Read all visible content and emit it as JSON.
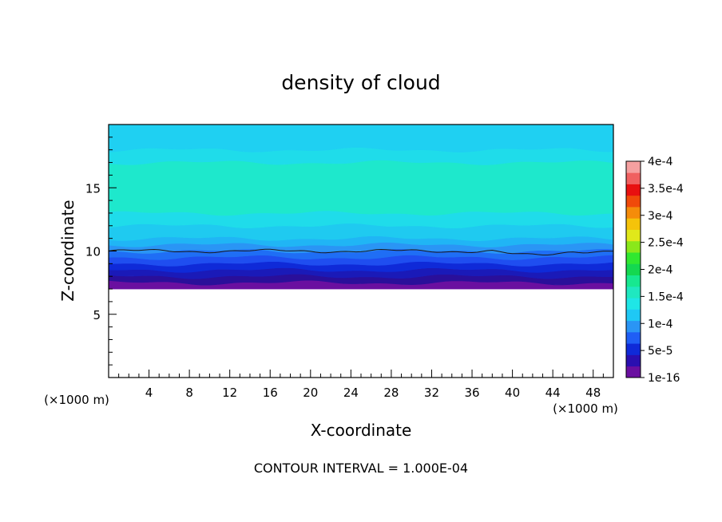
{
  "chart_data": {
    "type": "contour",
    "title": "density of cloud",
    "xlabel": "X-coordinate",
    "ylabel": "Z-coordinate",
    "x_unit": "(×1000 m)",
    "y_unit": "(×1000 m)",
    "xlim": [
      0,
      50
    ],
    "ylim": [
      0,
      20
    ],
    "x_ticks": [
      4,
      8,
      12,
      16,
      20,
      24,
      28,
      32,
      36,
      40,
      44,
      48
    ],
    "y_ticks": [
      5,
      10,
      15
    ],
    "footer": "CONTOUR INTERVAL = 1.000E-04",
    "colorbar": {
      "labels": [
        "4e-4",
        "3.5e-4",
        "3e-4",
        "2.5e-4",
        "2e-4",
        "1.5e-4",
        "1e-4",
        "5e-5",
        "1e-16"
      ],
      "colors_bottom_to_top": [
        "#6a0fa0",
        "#2a0fb0",
        "#0f2ad8",
        "#1f5ef5",
        "#2a95f5",
        "#1fc8f5",
        "#1fe6e6",
        "#1fe8c0",
        "#17e890",
        "#14d850",
        "#30e830",
        "#8ae81a",
        "#e0e81a",
        "#f5c30a",
        "#f58c0a",
        "#f04a0a",
        "#e81010",
        "#f06060",
        "#f5a0a0"
      ]
    },
    "cloud_base_z": 7.0,
    "contour_line_z": 10.0,
    "bands_bottom_to_top": [
      {
        "z": [
          7.0,
          7.5
        ],
        "color": "#6a0fa0"
      },
      {
        "z": [
          7.5,
          8.0
        ],
        "color": "#2a0f9a"
      },
      {
        "z": [
          8.0,
          8.5
        ],
        "color": "#1a1ab8"
      },
      {
        "z": [
          8.5,
          9.0
        ],
        "color": "#0f2ad8"
      },
      {
        "z": [
          9.0,
          9.5
        ],
        "color": "#1f4ef0"
      },
      {
        "z": [
          9.5,
          10.0
        ],
        "color": "#1f6ef5"
      },
      {
        "z": [
          10.0,
          10.5
        ],
        "color": "#2a95f5"
      },
      {
        "z": [
          10.5,
          11.0
        ],
        "color": "#20b5f5"
      },
      {
        "z": [
          11.0,
          12.0
        ],
        "color": "#1fcaf0"
      },
      {
        "z": [
          12.0,
          13.0
        ],
        "color": "#1fdcea"
      },
      {
        "z": [
          13.0,
          17.0
        ],
        "color": "#1ee8cc"
      },
      {
        "z": [
          17.0,
          18.0
        ],
        "color": "#1fdcea"
      },
      {
        "z": [
          18.0,
          20.0
        ],
        "color": "#1fd0f2"
      }
    ]
  }
}
